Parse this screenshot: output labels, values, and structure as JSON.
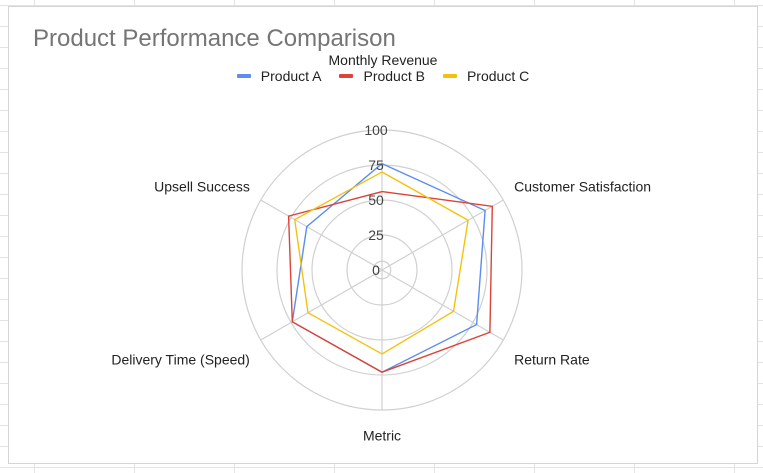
{
  "chart_data": {
    "type": "radar",
    "title": "Product Performance Comparison",
    "legend_title": "Monthly Revenue",
    "legend_position": "top",
    "axes": [
      "Monthly Revenue",
      "Customer Satisfaction",
      "Return Rate",
      "Metric",
      "Delivery Time (Speed)",
      "Upsell Success"
    ],
    "radial_ticks": [
      "0",
      "25",
      "50",
      "75",
      "100"
    ],
    "rlim": [
      0,
      100
    ],
    "grid": true,
    "series": [
      {
        "name": "Product A",
        "color": "#5b8def",
        "values": [
          76,
          85,
          78,
          73,
          74,
          62
        ]
      },
      {
        "name": "Product B",
        "color": "#db4437",
        "values": [
          56,
          91,
          89,
          73,
          74,
          77
        ]
      },
      {
        "name": "Product C",
        "color": "#f4c20d",
        "values": [
          70,
          71,
          59,
          60,
          61,
          72
        ]
      }
    ]
  }
}
